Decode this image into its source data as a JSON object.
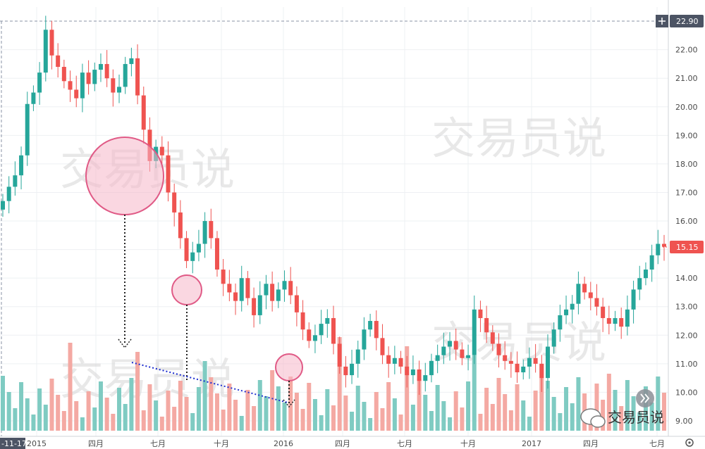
{
  "watermarks": {
    "top_left": "交易员说",
    "top_right": "交易员说",
    "bottom_left": "交易员说",
    "bottom_right": "交易员说",
    "wechat_badge": "交易员说"
  },
  "price_labels": {
    "top_marker": "22.90",
    "last_price": "15.15"
  },
  "x_axis_start_label": "-11-17",
  "colors": {
    "up": "#26a69a",
    "down": "#ef5350",
    "volume_up": "#7fcbc2",
    "volume_down": "#f4a9a3",
    "highlight_fill": "#f5b6c8",
    "highlight_stroke": "#e05a86",
    "trend_line": "#1f2fd0",
    "arrow_line": "#222222"
  },
  "icons": [
    "plus-icon",
    "chevrons-right-icon",
    "settings-gear-icon",
    "wechat-icon"
  ],
  "chart_data": {
    "type": "candlestick",
    "y_ticks": [
      "22.00",
      "21.00",
      "20.00",
      "19.00",
      "18.00",
      "17.00",
      "16.00",
      "15.00",
      "14.00",
      "13.00",
      "12.00",
      "11.00",
      "10.00",
      "9.00"
    ],
    "ylim": [
      9.0,
      23.2
    ],
    "x_ticks": [
      "2015",
      "四月",
      "七月",
      "十月",
      "2016",
      "四月",
      "七月",
      "十月",
      "2017",
      "四月",
      "七月"
    ],
    "series": [
      {
        "close": [
          16.7,
          17.2,
          17.6,
          18.3,
          20.1,
          20.5,
          21.2,
          22.7,
          21.8,
          21.4,
          20.9,
          20.6,
          20.3,
          21.2,
          20.8,
          21.3,
          21.5,
          21.0,
          20.5,
          20.7,
          21.5,
          21.7,
          20.4,
          19.2,
          18.1,
          18.6,
          18.3,
          17.0,
          16.3,
          15.4,
          14.6,
          14.9,
          15.2,
          16.0,
          15.4,
          14.3,
          13.8,
          13.5,
          13.2,
          14.0,
          13.3,
          12.7,
          13.4,
          13.8,
          13.2,
          13.6,
          13.9,
          13.4,
          12.8,
          12.2,
          11.8,
          12.0,
          12.4,
          12.6,
          11.7,
          10.9,
          10.6,
          11.0,
          11.5,
          12.2,
          12.5,
          11.9,
          11.3,
          11.0,
          11.2,
          10.9,
          10.6,
          10.8,
          10.4,
          10.6,
          11.1,
          11.3,
          11.6,
          11.8,
          11.5,
          11.2,
          11.3,
          12.9,
          12.6,
          12.1,
          11.7,
          11.3,
          11.1,
          11.0,
          10.7,
          10.9,
          11.2,
          11.0,
          10.5,
          11.6,
          12.2,
          12.7,
          12.9,
          13.1,
          13.8,
          13.5,
          13.3,
          13.0,
          12.6,
          12.4,
          12.6,
          12.3,
          12.9,
          13.6,
          14.0,
          14.3,
          14.8,
          15.2,
          15.1
        ],
        "note": "approximate daily close path read from the chart"
      }
    ]
  }
}
